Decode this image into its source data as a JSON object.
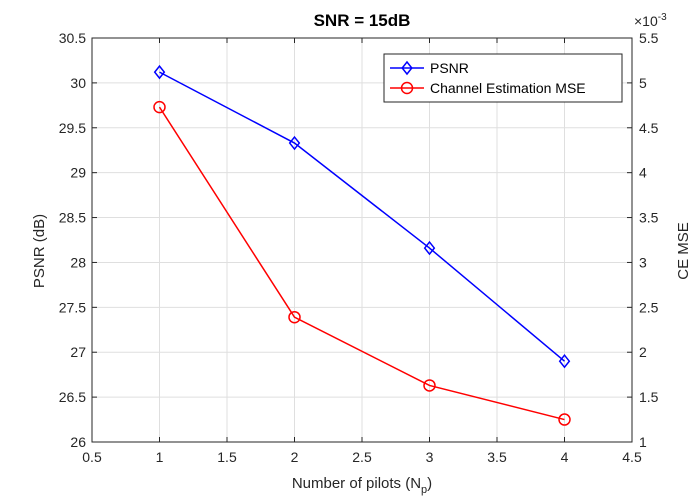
{
  "chart_data": {
    "type": "line",
    "title": "SNR = 15dB",
    "xlabel": "Number of pilots (N",
    "xlabel_sub": "p",
    "xlabel_close": ")",
    "ylabel_left": "PSNR (dB)",
    "ylabel_right": "CE MSE",
    "right_exponent_base": "×10",
    "right_exponent_power": "-3",
    "xlim": [
      0.5,
      4.5
    ],
    "ylim_left": [
      26,
      30.5
    ],
    "ylim_right": [
      1,
      5.5
    ],
    "x_ticks": [
      "0.5",
      "1",
      "1.5",
      "2",
      "2.5",
      "3",
      "3.5",
      "4",
      "4.5"
    ],
    "y_left_ticks": [
      "26",
      "26.5",
      "27",
      "27.5",
      "28",
      "28.5",
      "29",
      "29.5",
      "30",
      "30.5"
    ],
    "y_right_ticks": [
      "1",
      "1.5",
      "2",
      "2.5",
      "3",
      "3.5",
      "4",
      "4.5",
      "5",
      "5.5"
    ],
    "grid": true,
    "legend_position": "top-right",
    "series": [
      {
        "name": "PSNR",
        "axis": "left",
        "color": "#0000ff",
        "marker": "diamond",
        "x": [
          1,
          2,
          3,
          4
        ],
        "values": [
          30.12,
          29.33,
          28.16,
          26.9
        ]
      },
      {
        "name": "Channel Estimation MSE",
        "axis": "right",
        "color": "#ff0000",
        "marker": "circle",
        "x": [
          1,
          2,
          3,
          4
        ],
        "values": [
          0.00473,
          0.00239,
          0.00163,
          0.00125
        ],
        "display_scale": 1000
      }
    ]
  }
}
